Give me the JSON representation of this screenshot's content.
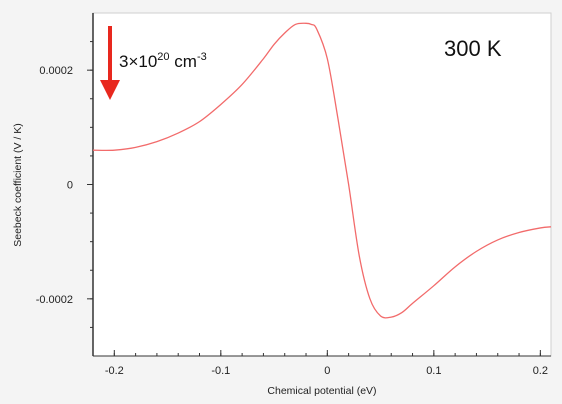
{
  "chart_data": {
    "type": "line",
    "xlabel": "Chemical potential (eV)",
    "ylabel": "Seebeck coefficient (V / K)",
    "xlim": [
      -0.22,
      0.21
    ],
    "ylim": [
      -0.0003,
      0.0003
    ],
    "x_ticks": [
      -0.2,
      -0.1,
      0,
      0.1,
      0.2
    ],
    "x_tick_labels": [
      "-0.2",
      "-0.1",
      "0",
      "0.1",
      "0.2"
    ],
    "y_ticks": [
      0.0002,
      0,
      -0.0002
    ],
    "y_tick_labels": [
      "0.0002",
      "0",
      "-0.0002"
    ],
    "series": [
      {
        "color": "#f26b6b",
        "x": [
          -0.22,
          -0.2,
          -0.18,
          -0.16,
          -0.14,
          -0.12,
          -0.1,
          -0.08,
          -0.06,
          -0.05,
          -0.04,
          -0.03,
          -0.02,
          -0.015,
          -0.01,
          0.0,
          0.01,
          0.02,
          0.03,
          0.04,
          0.05,
          0.06,
          0.07,
          0.08,
          0.1,
          0.12,
          0.14,
          0.16,
          0.18,
          0.2,
          0.21
        ],
        "y": [
          6e-05,
          6e-05,
          6.5e-05,
          7.5e-05,
          9e-05,
          0.00011,
          0.00014,
          0.000175,
          0.00022,
          0.000245,
          0.000265,
          0.00028,
          0.000282,
          0.00028,
          0.000272,
          0.00022,
          0.000115,
          0.0,
          -0.000125,
          -0.0002,
          -0.00023,
          -0.000232,
          -0.000224,
          -0.000208,
          -0.000177,
          -0.000144,
          -0.000117,
          -9.7e-05,
          -8.4e-05,
          -7.6e-05,
          -7.4e-05
        ]
      }
    ],
    "annotations": {
      "temperature": "300 K",
      "concentration_base": "3×10",
      "concentration_exp": "20",
      "concentration_unit": " cm",
      "concentration_unit_exp": "-3"
    },
    "colors": {
      "arrow": "#e8281e",
      "line": "#f26b6b",
      "frame": "#cfcfcf",
      "axis": "#333333"
    },
    "grid": false
  }
}
